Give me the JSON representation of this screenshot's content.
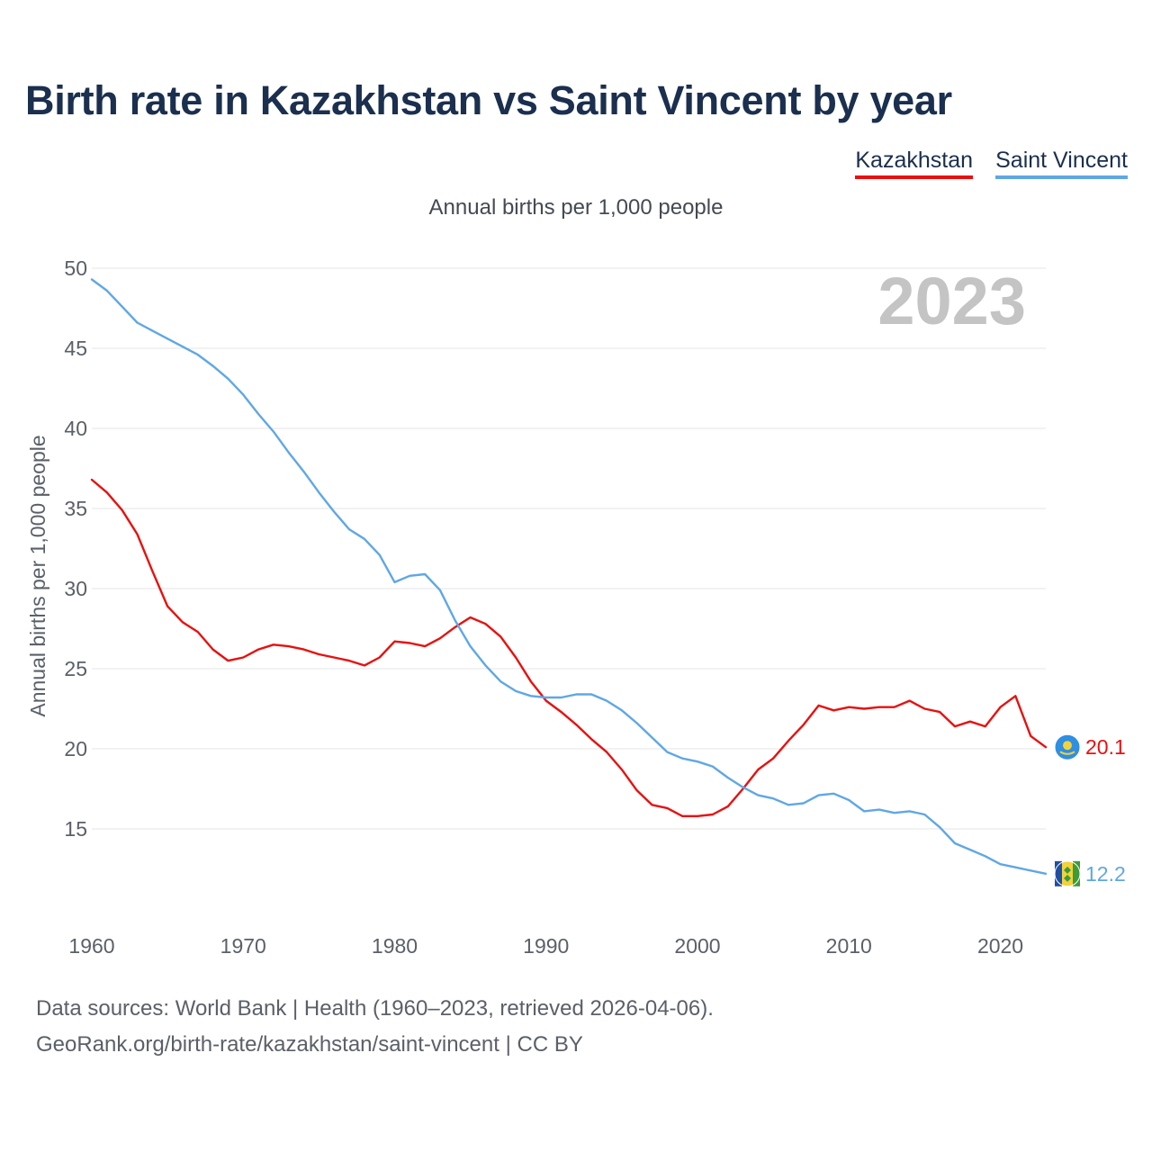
{
  "title": "Birth rate in Kazakhstan vs Saint Vincent by year",
  "subtitle": "Annual births per 1,000 people",
  "legend": [
    "Kazakhstan",
    "Saint Vincent"
  ],
  "footer": {
    "source": "Data sources: World Bank | Health (1960–2023, retrieved 2026-04-06).",
    "credit": "GeoRank.org/birth-rate/kazakhstan/saint-vincent | CC BY"
  },
  "colors": {
    "kazakhstan": "#e8100f",
    "saint_vincent": "#5fa7e5",
    "title": "#1b2f4f"
  },
  "chart_data": {
    "type": "line",
    "title": "Birth rate in Kazakhstan vs Saint Vincent by year",
    "subtitle": "Annual births per 1,000 people",
    "ylabel": "Annual births per 1,000 people",
    "xlabel": "",
    "xlim": [
      1960,
      2023
    ],
    "ylim": [
      10,
      50
    ],
    "x_ticks": [
      1960,
      1970,
      1980,
      1990,
      2000,
      2010,
      2020
    ],
    "y_ticks": [
      15,
      20,
      25,
      30,
      35,
      40,
      45,
      50
    ],
    "grid": true,
    "legend_position": "top-right",
    "highlight_year": "2023",
    "x": [
      1960,
      1961,
      1962,
      1963,
      1964,
      1965,
      1966,
      1967,
      1968,
      1969,
      1970,
      1971,
      1972,
      1973,
      1974,
      1975,
      1976,
      1977,
      1978,
      1979,
      1980,
      1981,
      1982,
      1983,
      1984,
      1985,
      1986,
      1987,
      1988,
      1989,
      1990,
      1991,
      1992,
      1993,
      1994,
      1995,
      1996,
      1997,
      1998,
      1999,
      2000,
      2001,
      2002,
      2003,
      2004,
      2005,
      2006,
      2007,
      2008,
      2009,
      2010,
      2011,
      2012,
      2013,
      2014,
      2015,
      2016,
      2017,
      2018,
      2019,
      2020,
      2021,
      2022,
      2023
    ],
    "series": [
      {
        "name": "Kazakhstan",
        "color": "#e8100f",
        "end_label": "20.1",
        "values": [
          36.8,
          36.0,
          34.9,
          33.4,
          31.1,
          28.9,
          27.9,
          27.3,
          26.2,
          25.5,
          25.7,
          26.2,
          26.5,
          26.4,
          26.2,
          25.9,
          25.7,
          25.5,
          25.2,
          25.7,
          26.7,
          26.6,
          26.4,
          26.9,
          27.6,
          28.2,
          27.8,
          27.0,
          25.7,
          24.2,
          23.0,
          22.3,
          21.5,
          20.6,
          19.8,
          18.7,
          17.4,
          16.5,
          16.3,
          15.8,
          15.8,
          15.9,
          16.4,
          17.5,
          18.7,
          19.4,
          20.5,
          21.5,
          22.7,
          22.4,
          22.6,
          22.5,
          22.6,
          22.6,
          23.0,
          22.5,
          22.3,
          21.4,
          21.7,
          21.4,
          22.6,
          23.3,
          20.8,
          20.1
        ]
      },
      {
        "name": "Saint Vincent",
        "color": "#5fa7e5",
        "end_label": "12.2",
        "values": [
          49.3,
          48.6,
          47.6,
          46.6,
          46.1,
          45.6,
          45.1,
          44.6,
          43.9,
          43.1,
          42.1,
          40.9,
          39.8,
          38.5,
          37.3,
          36.0,
          34.8,
          33.7,
          33.1,
          32.1,
          30.4,
          30.8,
          30.9,
          29.9,
          28.0,
          26.4,
          25.2,
          24.2,
          23.6,
          23.3,
          23.2,
          23.2,
          23.4,
          23.4,
          23.0,
          22.4,
          21.6,
          20.7,
          19.8,
          19.4,
          19.2,
          18.9,
          18.2,
          17.6,
          17.1,
          16.9,
          16.5,
          16.6,
          17.1,
          17.2,
          16.8,
          16.1,
          16.2,
          16.0,
          16.1,
          15.9,
          15.1,
          14.1,
          13.7,
          13.3,
          12.8,
          12.6,
          12.4,
          12.2
        ]
      }
    ]
  }
}
